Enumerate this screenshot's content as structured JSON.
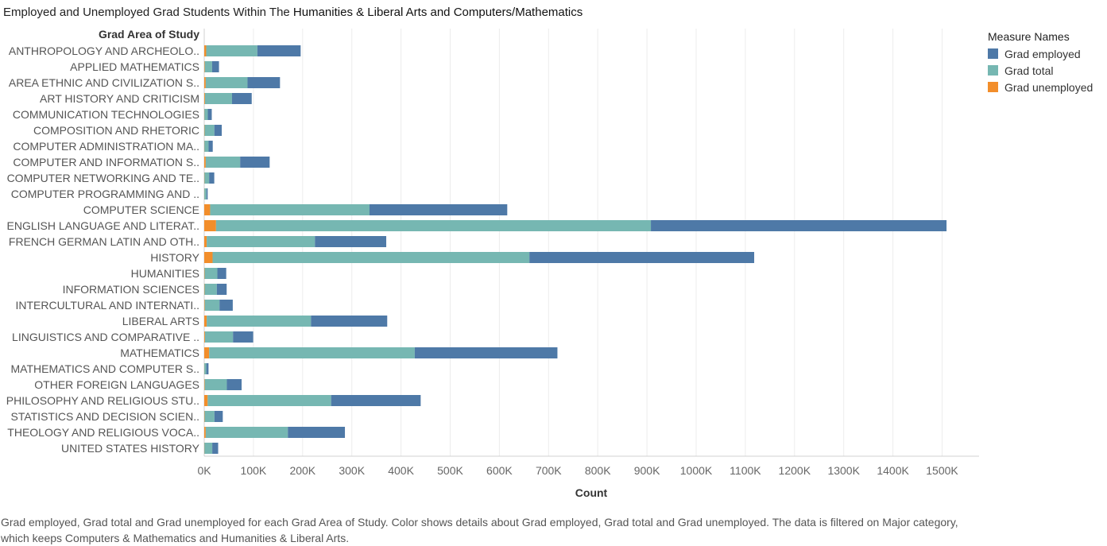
{
  "title": {
    "prefix": "Employed and Unemployed Grad Students Within The ",
    "highlight": "Humanities & Liberal Arts and Computers/Mathematics"
  },
  "legend": {
    "title": "Measure Names",
    "items": [
      {
        "label": "Grad employed",
        "color": "#4e79a7"
      },
      {
        "label": "Grad total",
        "color": "#76b7b2"
      },
      {
        "label": "Grad unemployed",
        "color": "#f28e2b"
      }
    ]
  },
  "caption": "Grad employed, Grad total and Grad unemployed for each Grad Area of Study.  Color shows details about Grad employed, Grad total and Grad unemployed. The data is filtered on Major category, which keeps Computers & Mathematics and Humanities & Liberal Arts.",
  "chart_data": {
    "type": "bar",
    "orientation": "horizontal",
    "stacked": true,
    "row_header": "Grad Area of Study",
    "xlabel": "Count",
    "xlim": [
      0,
      1550000
    ],
    "xticks": [
      0,
      100000,
      200000,
      300000,
      400000,
      500000,
      600000,
      700000,
      800000,
      900000,
      1000000,
      1100000,
      1200000,
      1300000,
      1400000,
      1500000
    ],
    "xtick_labels": [
      "0K",
      "100K",
      "200K",
      "300K",
      "400K",
      "500K",
      "600K",
      "700K",
      "800K",
      "900K",
      "1000K",
      "1100K",
      "1200K",
      "1300K",
      "1400K",
      "1500K"
    ],
    "grid": true,
    "legend_position": "top-right",
    "categories": [
      "ANTHROPOLOGY AND ARCHEOLO..",
      "APPLIED MATHEMATICS",
      "AREA ETHNIC AND CIVILIZATION S..",
      "ART HISTORY AND CRITICISM",
      "COMMUNICATION TECHNOLOGIES",
      "COMPOSITION AND RHETORIC",
      "COMPUTER ADMINISTRATION MA..",
      "COMPUTER AND INFORMATION S..",
      "COMPUTER NETWORKING AND TE..",
      "COMPUTER PROGRAMMING AND ..",
      "COMPUTER SCIENCE",
      "ENGLISH LANGUAGE AND LITERAT..",
      "FRENCH GERMAN LATIN AND OTH..",
      "HISTORY",
      "HUMANITIES",
      "INFORMATION SCIENCES",
      "INTERCULTURAL AND INTERNATI..",
      "LIBERAL ARTS",
      "LINGUISTICS AND COMPARATIVE ..",
      "MATHEMATICS",
      "MATHEMATICS AND COMPUTER S..",
      "OTHER FOREIGN LANGUAGES",
      "PHILOSOPHY AND RELIGIOUS STU..",
      "STATISTICS AND DECISION SCIEN..",
      "THEOLOGY AND RELIGIOUS VOCA..",
      "UNITED STATES HISTORY"
    ],
    "series": [
      {
        "name": "Grad unemployed",
        "color": "#f28e2b",
        "values": [
          4000,
          1000,
          3000,
          1500,
          300,
          600,
          300,
          3000,
          400,
          200,
          12000,
          24000,
          5000,
          17000,
          700,
          600,
          1000,
          5000,
          1500,
          10000,
          200,
          1000,
          7000,
          700,
          3000,
          300
        ]
      },
      {
        "name": "Grad total",
        "color": "#76b7b2",
        "values": [
          104000,
          15000,
          85000,
          55000,
          7000,
          20000,
          8500,
          70000,
          9500,
          4300,
          324000,
          884000,
          220000,
          644000,
          26000,
          25000,
          30000,
          212000,
          57000,
          418000,
          4000,
          45000,
          251000,
          20000,
          167000,
          16000
        ]
      },
      {
        "name": "Grad employed",
        "color": "#4e79a7",
        "values": [
          88000,
          14000,
          66000,
          40000,
          8000,
          15000,
          8500,
          60000,
          10500,
          2500,
          280000,
          601000,
          145000,
          457000,
          18000,
          20000,
          27000,
          155000,
          41000,
          290000,
          4500,
          30000,
          182000,
          17000,
          116000,
          12000
        ]
      }
    ]
  }
}
